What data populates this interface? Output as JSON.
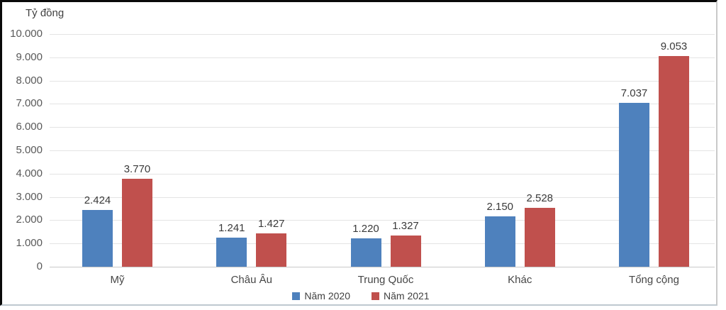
{
  "chart_data": {
    "type": "bar",
    "title": "",
    "ylabel": "Tỷ đồng",
    "xlabel": "",
    "categories": [
      "Mỹ",
      "Châu Âu",
      "Trung Quốc",
      "Khác",
      "Tổng cộng"
    ],
    "series": [
      {
        "name": "Năm 2020",
        "color": "#4E81BD",
        "values": [
          2424,
          1241,
          1220,
          2150,
          7037
        ],
        "value_labels": [
          "2.424",
          "1.241",
          "1.220",
          "2.150",
          "7.037"
        ]
      },
      {
        "name": "Năm 2021",
        "color": "#C0504D",
        "values": [
          3770,
          1427,
          1327,
          2528,
          9053
        ],
        "value_labels": [
          "3.770",
          "1.427",
          "1.327",
          "2.528",
          "9.053"
        ]
      }
    ],
    "ylim": [
      0,
      10000
    ],
    "ytick_step": 1000,
    "ytick_labels": [
      "0",
      "1.000",
      "2.000",
      "3.000",
      "4.000",
      "5.000",
      "6.000",
      "7.000",
      "8.000",
      "9.000",
      "10.000"
    ],
    "grid": true,
    "legend_position": "bottom"
  }
}
